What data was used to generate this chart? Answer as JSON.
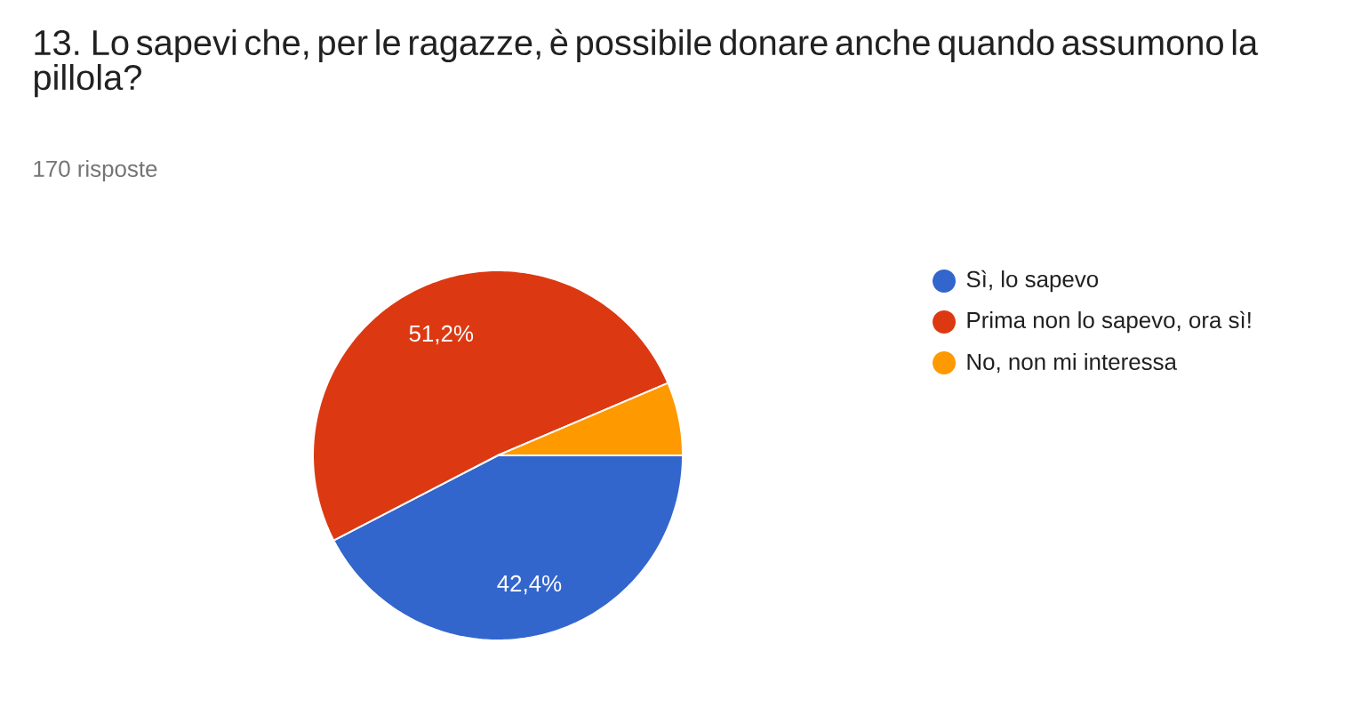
{
  "chart_data": {
    "type": "pie",
    "title": "13. Lo sapevi che, per le ragazze, è possibile donare anche quando assumono la pillola?",
    "subtitle": "170 risposte",
    "categories": [
      "Sì, lo sapevo",
      "Prima non lo sapevo, ora sì!",
      "No, non mi interessa"
    ],
    "values": [
      42.4,
      51.2,
      6.4
    ],
    "colors": [
      "#3366cc",
      "#dc3912",
      "#ff9900"
    ],
    "value_labels": [
      "42,4%",
      "51,2%",
      null
    ],
    "legend": "right"
  }
}
